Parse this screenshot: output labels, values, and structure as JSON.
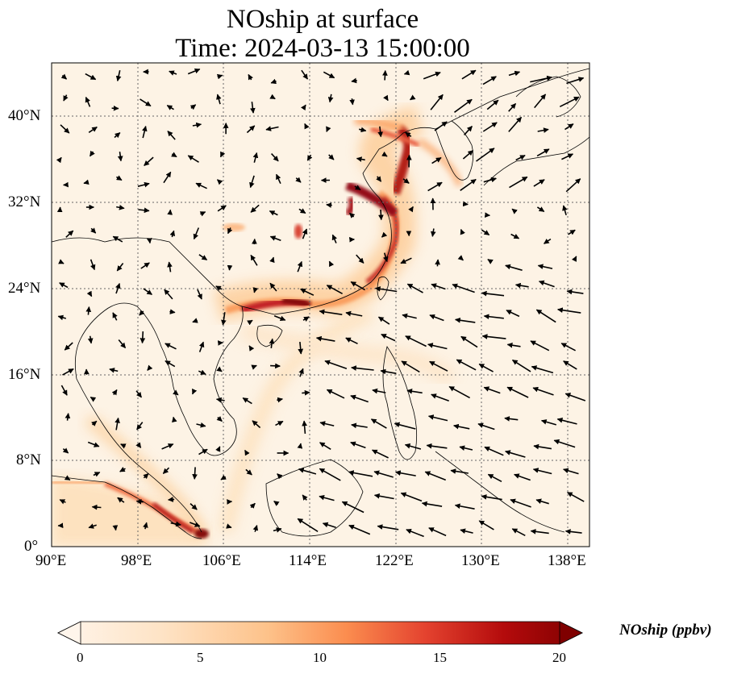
{
  "title": {
    "line1": "NOship at surface",
    "line2": "Time: 2024-03-13 15:00:00"
  },
  "map": {
    "lon_range": [
      90,
      140
    ],
    "lat_range": [
      0,
      45
    ],
    "lon_ticks": [
      "90°E",
      "98°E",
      "106°E",
      "114°E",
      "122°E",
      "130°E",
      "138°E"
    ],
    "lat_ticks": [
      "0°",
      "8°N",
      "16°N",
      "24°N",
      "32°N",
      "40°N"
    ],
    "field_colors": [
      "#fff5eb",
      "#fdd8a8",
      "#fb9e5c",
      "#e2432f",
      "#a30f14",
      "#7f0000"
    ]
  },
  "colorbar": {
    "label": "NOship (ppbv)",
    "min": 0,
    "max": 20,
    "tick_labels": [
      "0",
      "5",
      "10",
      "15",
      "20"
    ],
    "extend": "both"
  }
}
